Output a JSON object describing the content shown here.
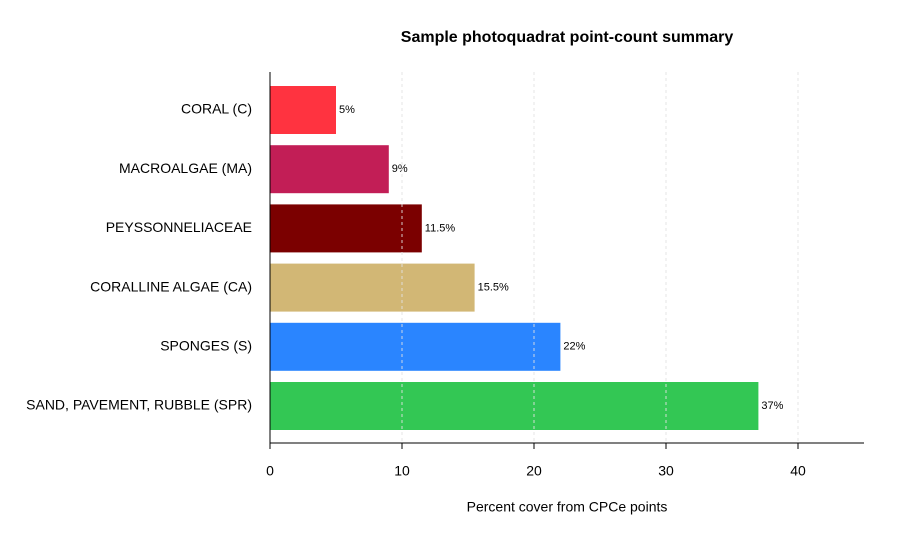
{
  "chart_data": {
    "type": "barh",
    "title": "Sample photoquadrat point-count summary",
    "xlabel": "Percent cover from CPCe points",
    "categories": [
      "CORAL (C)",
      "MACROALGAE (MA)",
      "PEYSSONNELIACEAE",
      "CORALLINE ALGAE (CA)",
      "SPONGES (S)",
      "SAND, PAVEMENT, RUBBLE (SPR)"
    ],
    "values": [
      5,
      9,
      11.5,
      15.5,
      22,
      37
    ],
    "value_labels": [
      "5%",
      "9%",
      "11.5%",
      "15.5%",
      "22%",
      "37%"
    ],
    "colors": [
      "#ff3340",
      "#c21e56",
      "#7b0000",
      "#d2b775",
      "#2a85ff",
      "#33c754"
    ],
    "xlim": [
      0,
      45
    ],
    "xticks": [
      0,
      10,
      20,
      30,
      40
    ],
    "grid": true
  }
}
